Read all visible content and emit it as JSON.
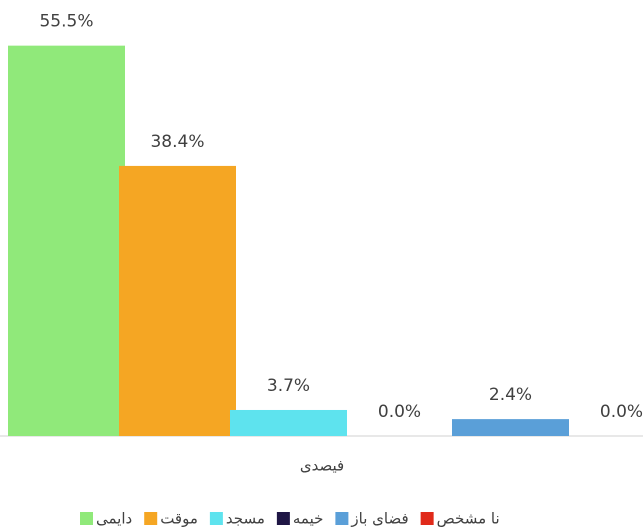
{
  "chart_data": {
    "type": "bar",
    "categories": [
      "فیصدی"
    ],
    "series": [
      {
        "name": "دایمی",
        "color": "#90e97a",
        "values": [
          55.5
        ],
        "value_labels": [
          "55.5%"
        ]
      },
      {
        "name": "موقت",
        "color": "#f5a623",
        "values": [
          38.4
        ],
        "value_labels": [
          "38.4%"
        ]
      },
      {
        "name": "مسجد",
        "color": "#5ee3ee",
        "values": [
          3.7
        ],
        "value_labels": [
          "3.7%"
        ]
      },
      {
        "name": "خیمه",
        "color": "#1f1645",
        "values": [
          0.0
        ],
        "value_labels": [
          "0.0%"
        ]
      },
      {
        "name": "فضای باز",
        "color": "#5a9fd8",
        "values": [
          2.4
        ],
        "value_labels": [
          "2.4%"
        ]
      },
      {
        "name": "نا مشخص",
        "color": "#e02a1a",
        "values": [
          0.0
        ],
        "value_labels": [
          "0.0%"
        ]
      }
    ],
    "ylim": [
      0,
      60
    ],
    "legend": "bottom"
  }
}
